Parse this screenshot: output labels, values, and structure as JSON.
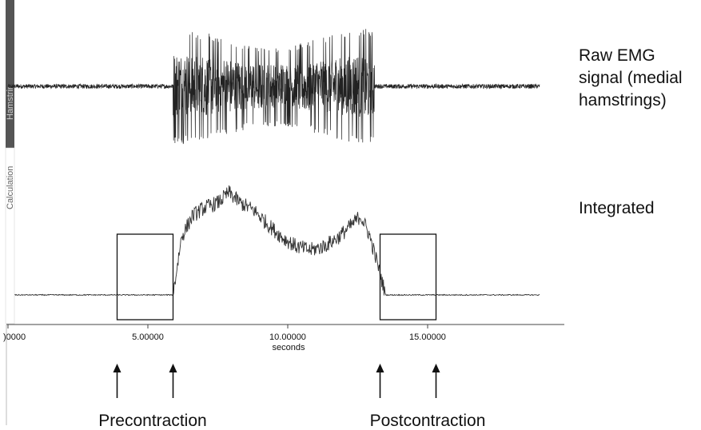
{
  "chart_data": {
    "type": "line",
    "x_axis": {
      "label": "seconds",
      "range": [
        0,
        19.0
      ],
      "ticks": [
        0,
        5,
        10,
        15
      ],
      "tick_labels": [
        ")0000",
        "5.00000",
        "10.00000",
        "15.00000"
      ]
    },
    "channels": [
      {
        "channel_label": "Hamstrin",
        "annotation_lines": [
          "Raw EMG",
          "signal (medial",
          "hamstrings)"
        ],
        "kind": "raw",
        "baseline_amplitude": 0.04,
        "activity_start_s": 5.9,
        "activity_end_s": 13.1,
        "peak_amplitude": 1.0,
        "color": "#222222"
      },
      {
        "channel_label": "Calculation",
        "annotation_lines": [
          "Integrated"
        ],
        "kind": "envelope",
        "baseline_level": 0.0,
        "points": [
          [
            0.0,
            0.0
          ],
          [
            5.9,
            0.0
          ],
          [
            6.2,
            0.45
          ],
          [
            6.6,
            0.62
          ],
          [
            7.0,
            0.68
          ],
          [
            7.5,
            0.72
          ],
          [
            7.9,
            0.8
          ],
          [
            8.3,
            0.72
          ],
          [
            8.8,
            0.66
          ],
          [
            9.3,
            0.55
          ],
          [
            9.8,
            0.45
          ],
          [
            10.3,
            0.38
          ],
          [
            10.8,
            0.35
          ],
          [
            11.3,
            0.38
          ],
          [
            11.8,
            0.45
          ],
          [
            12.3,
            0.55
          ],
          [
            12.6,
            0.62
          ],
          [
            12.9,
            0.48
          ],
          [
            13.2,
            0.25
          ],
          [
            13.5,
            0.0
          ],
          [
            19.0,
            0.0
          ]
        ],
        "color": "#333333"
      }
    ],
    "highlight_windows": [
      {
        "label": "Precontraction",
        "start_s": 3.9,
        "end_s": 5.9
      },
      {
        "label": "Postcontraction",
        "start_s": 13.3,
        "end_s": 15.3
      }
    ],
    "grid": false
  },
  "colors": {
    "channel_bar_raw": "#555555",
    "channel_bar_calc": "#ffffff",
    "signal": "#222222"
  }
}
